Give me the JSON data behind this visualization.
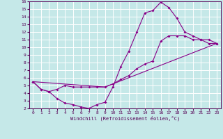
{
  "xlabel": "Windchill (Refroidissement éolien,°C)",
  "xlim": [
    -0.5,
    23.5
  ],
  "ylim": [
    2,
    16
  ],
  "xticks": [
    0,
    1,
    2,
    3,
    4,
    5,
    6,
    7,
    8,
    9,
    10,
    11,
    12,
    13,
    14,
    15,
    16,
    17,
    18,
    19,
    20,
    21,
    22,
    23
  ],
  "yticks": [
    2,
    3,
    4,
    5,
    6,
    7,
    8,
    9,
    10,
    11,
    12,
    13,
    14,
    15,
    16
  ],
  "background_color": "#c5e8e8",
  "line_color": "#880088",
  "grid_color": "#ffffff",
  "line1_x": [
    0,
    1,
    2,
    3,
    4,
    5,
    6,
    7,
    8,
    9,
    10,
    11,
    12,
    13,
    14,
    15,
    16,
    17,
    18,
    19,
    20,
    21,
    22,
    23
  ],
  "line1_y": [
    5.5,
    4.5,
    4.2,
    3.3,
    2.7,
    2.5,
    2.2,
    2.0,
    2.5,
    2.8,
    4.8,
    7.5,
    9.5,
    12.0,
    14.5,
    14.8,
    15.9,
    15.2,
    13.8,
    12.0,
    11.5,
    11.0,
    11.0,
    10.5
  ],
  "line2_x": [
    0,
    1,
    2,
    3,
    4,
    5,
    6,
    7,
    8,
    9,
    10,
    11,
    12,
    13,
    14,
    15,
    16,
    17,
    18,
    19,
    20,
    21,
    22,
    23
  ],
  "line2_y": [
    5.5,
    4.5,
    4.2,
    4.5,
    5.0,
    4.8,
    4.8,
    4.8,
    4.8,
    4.8,
    5.2,
    5.8,
    6.3,
    7.2,
    7.8,
    8.2,
    10.8,
    11.5,
    11.5,
    11.5,
    11.0,
    11.0,
    10.5,
    10.5
  ],
  "line3_x": [
    0,
    9,
    23
  ],
  "line3_y": [
    5.5,
    4.8,
    10.5
  ]
}
